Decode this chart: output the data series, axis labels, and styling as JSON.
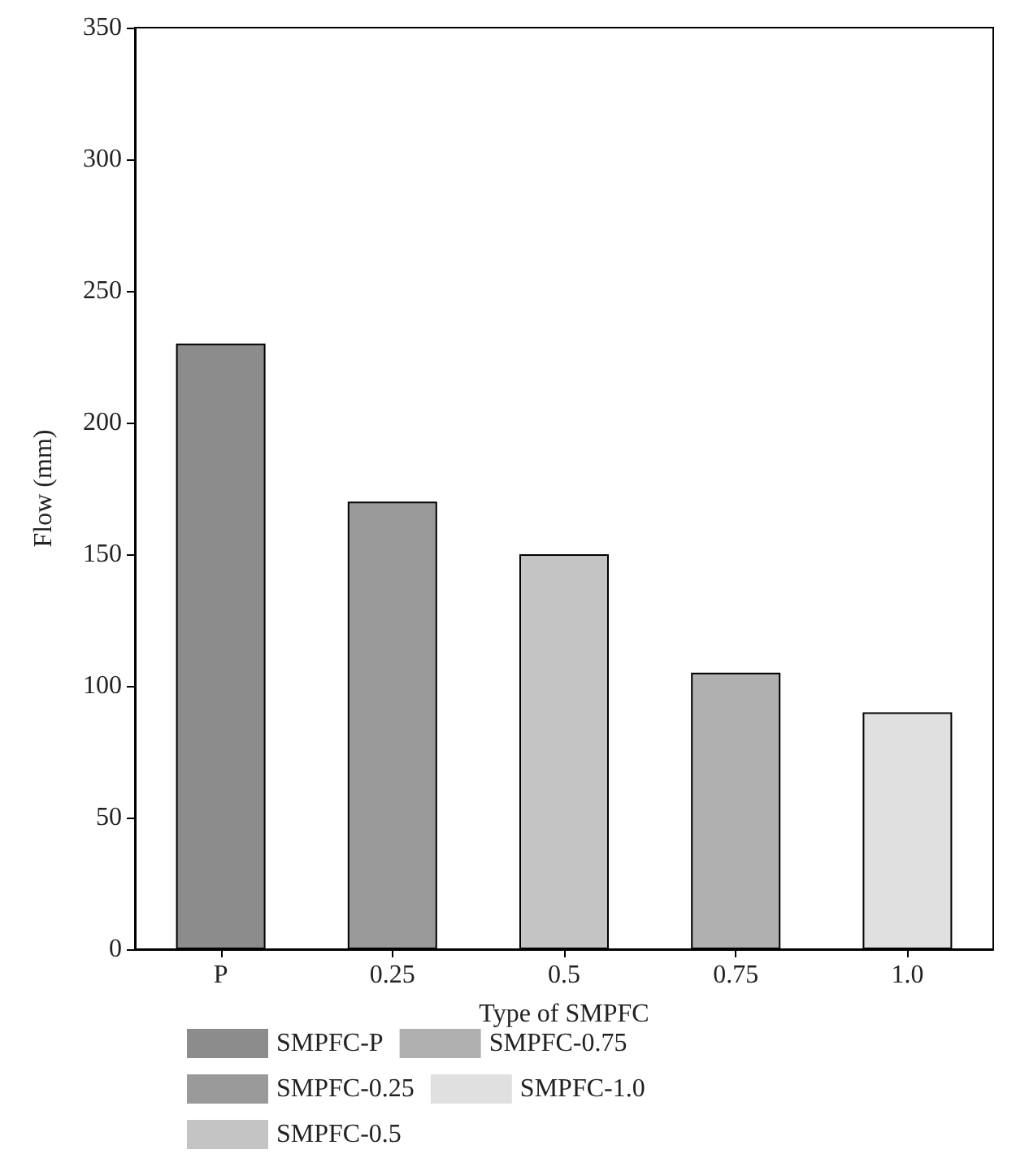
{
  "chart_data": {
    "type": "bar",
    "xlabel": "Type of SMPFC",
    "ylabel": "Flow (mm)",
    "categories": [
      "P",
      "0.25",
      "0.5",
      "0.75",
      "1.0"
    ],
    "series": [
      {
        "name": "SMPFC-P",
        "color": "#8c8c8c",
        "values": [
          230,
          null,
          null,
          null,
          null
        ]
      },
      {
        "name": "SMPFC-0.25",
        "color": "#9a9a9a",
        "values": [
          null,
          170,
          null,
          null,
          null
        ]
      },
      {
        "name": "SMPFC-0.5",
        "color": "#c4c4c4",
        "values": [
          null,
          null,
          150,
          null,
          null
        ]
      },
      {
        "name": "SMPFC-0.75",
        "color": "#b0b0b0",
        "values": [
          null,
          null,
          null,
          105,
          null
        ]
      },
      {
        "name": "SMPFC-1.0",
        "color": "#e0e0e0",
        "values": [
          null,
          null,
          null,
          null,
          90
        ]
      }
    ],
    "ylim": [
      0,
      350
    ],
    "yticks": [
      0,
      50,
      100,
      150,
      200,
      250,
      300,
      350
    ],
    "grid": false,
    "legend": "bottom"
  }
}
